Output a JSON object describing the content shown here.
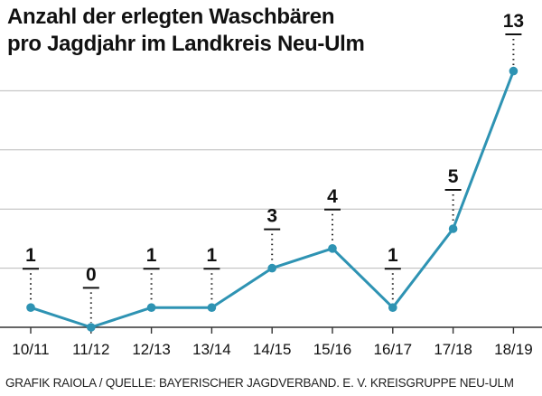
{
  "chart_data": {
    "type": "line",
    "title": "Anzahl der erlegten Waschbären pro Jagdjahr im Landkreis Neu-Ulm",
    "title_lines": [
      "Anzahl der erlegten Waschbären",
      "pro Jagdjahr im Landkreis Neu-Ulm"
    ],
    "categories": [
      "10/11",
      "11/12",
      "12/13",
      "13/14",
      "14/15",
      "15/16",
      "16/17",
      "17/18",
      "18/19"
    ],
    "value_labels": [
      "1",
      "0",
      "1",
      "1",
      "3",
      "4",
      "1",
      "5",
      "13"
    ],
    "series": [
      {
        "name": "erlegte Waschbären",
        "values": [
          1,
          0,
          1,
          1,
          3,
          4,
          1,
          5,
          13
        ],
        "color": "#2e93b3"
      }
    ],
    "xlabel": "",
    "ylabel": "",
    "ylim": [
      0,
      14
    ],
    "grid": true,
    "legend": "none"
  },
  "footer": {
    "source": "GRAFIK RAIOLA / QUELLE: BAYERISCHER JAGDVERBAND. E. V. KREISGRUPPE NEU-ULM"
  },
  "colors": {
    "line": "#2e93b3",
    "grid": "#b9b9b9",
    "text": "#111111"
  }
}
